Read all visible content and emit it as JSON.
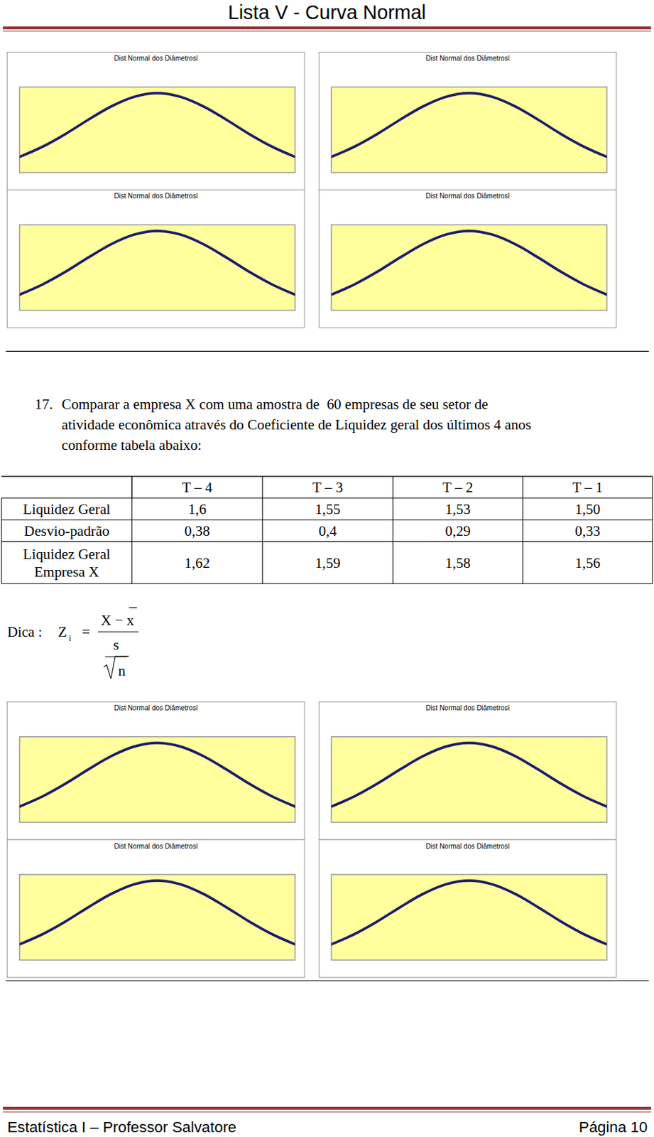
{
  "header": {
    "title": "Lista V - Curva Normal"
  },
  "chart_data": [
    {
      "type": "line",
      "title": "Dist Normal dos Diâmetrosl",
      "x": [
        -1.8,
        -1.5,
        -1.2,
        -0.9,
        -0.6,
        -0.3,
        0,
        0.3,
        0.6,
        0.9,
        1.2,
        1.5,
        1.8
      ],
      "values": [
        0.079,
        0.13,
        0.194,
        0.266,
        0.333,
        0.381,
        0.399,
        0.381,
        0.333,
        0.266,
        0.194,
        0.13,
        0.079
      ],
      "xlim": [
        -1.8,
        1.8
      ],
      "ylim": [
        0,
        0.43
      ],
      "tick_labels": false,
      "color": "#1c1c6b"
    },
    {
      "type": "line",
      "title": "Dist Normal dos Diâmetrosl",
      "x": [
        -1.8,
        -1.5,
        -1.2,
        -0.9,
        -0.6,
        -0.3,
        0,
        0.3,
        0.6,
        0.9,
        1.2,
        1.5,
        1.8
      ],
      "values": [
        0.079,
        0.13,
        0.194,
        0.266,
        0.333,
        0.381,
        0.399,
        0.381,
        0.333,
        0.266,
        0.194,
        0.13,
        0.079
      ],
      "xlim": [
        -1.8,
        1.8
      ],
      "ylim": [
        0,
        0.43
      ],
      "tick_labels": false,
      "color": "#1c1c6b"
    },
    {
      "type": "line",
      "title": "Dist Normal dos Diâmetrosl",
      "x": [
        -1.8,
        -1.5,
        -1.2,
        -0.9,
        -0.6,
        -0.3,
        0,
        0.3,
        0.6,
        0.9,
        1.2,
        1.5,
        1.8
      ],
      "values": [
        0.079,
        0.13,
        0.194,
        0.266,
        0.333,
        0.381,
        0.399,
        0.381,
        0.333,
        0.266,
        0.194,
        0.13,
        0.079
      ],
      "xlim": [
        -1.8,
        1.8
      ],
      "ylim": [
        0,
        0.43
      ],
      "tick_labels": false,
      "color": "#1c1c6b"
    },
    {
      "type": "line",
      "title": "Dist Normal dos Diâmetrosl",
      "x": [
        -1.8,
        -1.5,
        -1.2,
        -0.9,
        -0.6,
        -0.3,
        0,
        0.3,
        0.6,
        0.9,
        1.2,
        1.5,
        1.8
      ],
      "values": [
        0.079,
        0.13,
        0.194,
        0.266,
        0.333,
        0.381,
        0.399,
        0.381,
        0.333,
        0.266,
        0.194,
        0.13,
        0.079
      ],
      "xlim": [
        -1.8,
        1.8
      ],
      "ylim": [
        0,
        0.43
      ],
      "tick_labels": false,
      "color": "#1c1c6b"
    },
    {
      "type": "line",
      "title": "Dist Normal dos Diâmetrosl",
      "x": [
        -1.8,
        -1.5,
        -1.2,
        -0.9,
        -0.6,
        -0.3,
        0,
        0.3,
        0.6,
        0.9,
        1.2,
        1.5,
        1.8
      ],
      "values": [
        0.079,
        0.13,
        0.194,
        0.266,
        0.333,
        0.381,
        0.399,
        0.381,
        0.333,
        0.266,
        0.194,
        0.13,
        0.079
      ],
      "xlim": [
        -1.8,
        1.8
      ],
      "ylim": [
        0,
        0.43
      ],
      "tick_labels": false,
      "color": "#1c1c6b"
    },
    {
      "type": "line",
      "title": "Dist Normal dos Diâmetrosl",
      "x": [
        -1.8,
        -1.5,
        -1.2,
        -0.9,
        -0.6,
        -0.3,
        0,
        0.3,
        0.6,
        0.9,
        1.2,
        1.5,
        1.8
      ],
      "values": [
        0.079,
        0.13,
        0.194,
        0.266,
        0.333,
        0.381,
        0.399,
        0.381,
        0.333,
        0.266,
        0.194,
        0.13,
        0.079
      ],
      "xlim": [
        -1.8,
        1.8
      ],
      "ylim": [
        0,
        0.43
      ],
      "tick_labels": false,
      "color": "#1c1c6b"
    },
    {
      "type": "line",
      "title": "Dist Normal dos Diâmetrosl",
      "x": [
        -1.8,
        -1.5,
        -1.2,
        -0.9,
        -0.6,
        -0.3,
        0,
        0.3,
        0.6,
        0.9,
        1.2,
        1.5,
        1.8
      ],
      "values": [
        0.079,
        0.13,
        0.194,
        0.266,
        0.333,
        0.381,
        0.399,
        0.381,
        0.333,
        0.266,
        0.194,
        0.13,
        0.079
      ],
      "xlim": [
        -1.8,
        1.8
      ],
      "ylim": [
        0,
        0.43
      ],
      "tick_labels": false,
      "color": "#1c1c6b"
    },
    {
      "type": "line",
      "title": "Dist Normal dos Diâmetrosl",
      "x": [
        -1.8,
        -1.5,
        -1.2,
        -0.9,
        -0.6,
        -0.3,
        0,
        0.3,
        0.6,
        0.9,
        1.2,
        1.5,
        1.8
      ],
      "values": [
        0.079,
        0.13,
        0.194,
        0.266,
        0.333,
        0.381,
        0.399,
        0.381,
        0.333,
        0.266,
        0.194,
        0.13,
        0.079
      ],
      "xlim": [
        -1.8,
        1.8
      ],
      "ylim": [
        0,
        0.43
      ],
      "tick_labels": false,
      "color": "#1c1c6b"
    }
  ],
  "question": {
    "number": "17.",
    "lines": [
      "Comparar a empresa X com uma amostra de  60 empresas de seu setor de",
      "atividade econômica através do Coeficiente de Liquidez geral dos últimos 4 anos",
      "conforme tabela abaixo:"
    ]
  },
  "table": {
    "columns": [
      "T – 4",
      "T – 3",
      "T – 2",
      "T – 1"
    ],
    "rows": [
      {
        "label": [
          "Liquidez Geral"
        ],
        "values": [
          "1,6",
          "1,55",
          "1,53",
          "1,50"
        ]
      },
      {
        "label": [
          "Desvio-padrão"
        ],
        "values": [
          "0,38",
          "0,4",
          "0,29",
          "0,33"
        ]
      },
      {
        "label": [
          "Liquidez Geral",
          "Empresa X"
        ],
        "values": [
          "1,62",
          "1,59",
          "1,58",
          "1,56"
        ]
      }
    ]
  },
  "hint": {
    "label": "Dica :",
    "lhs": "Z",
    "subscript": "i",
    "equals": "=",
    "numerator": "X − x",
    "denominator": "s",
    "radicand": "n"
  },
  "footer": {
    "left": "Estatística I – Professor Salvatore",
    "right": "Página 10"
  }
}
